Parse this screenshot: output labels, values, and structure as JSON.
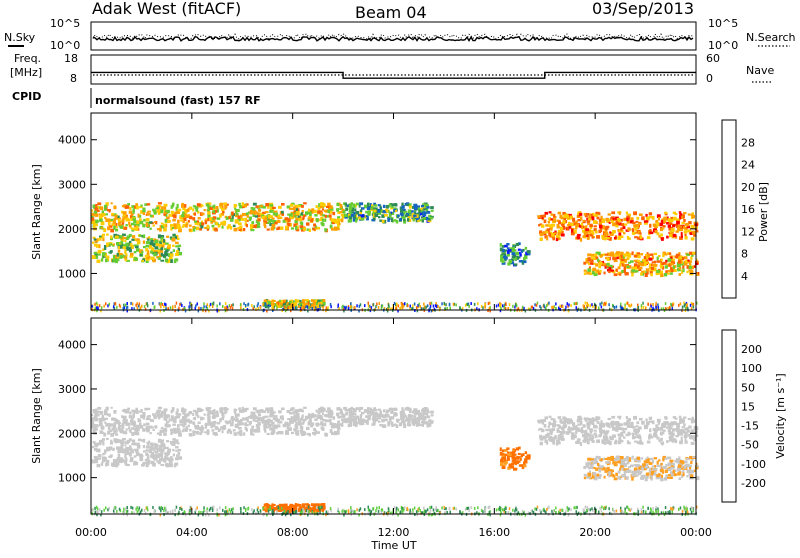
{
  "header": {
    "title": "Adak West (fitACF)",
    "beam": "Beam 04",
    "date": "03/Sep/2013"
  },
  "sky_panel": {
    "left_label": "N.Sky",
    "right_label": "N.Search",
    "ticks": [
      "10^5",
      "10^0"
    ]
  },
  "freq_panel": {
    "left_label_1": "Freq.",
    "left_label_2": "[MHz]",
    "right_label": "Nave",
    "left_ticks": [
      "18",
      "8"
    ],
    "right_ticks": [
      "60",
      "0"
    ]
  },
  "cpid": {
    "label": "CPID",
    "text": "normalsound (fast) 157 RF"
  },
  "power_panel": {
    "ylabel": "Slant Range [km]",
    "yticks": [
      "4000",
      "3000",
      "2000",
      "1000"
    ],
    "colorbar_label": "Power [dB]",
    "colorbar_ticks": [
      "28",
      "24",
      "20",
      "16",
      "12",
      "8",
      "4"
    ],
    "colors": [
      "#ff0000",
      "#ff6000",
      "#ff9f00",
      "#ffcc00",
      "#66cc33",
      "#2e8b57",
      "#1565c0",
      "#0a14ff"
    ]
  },
  "velocity_panel": {
    "ylabel": "Slant Range [km]",
    "yticks": [
      "4000",
      "3000",
      "2000",
      "1000"
    ],
    "colorbar_label": "Velocity [m s⁻¹]",
    "colorbar_ticks": [
      "200",
      "100",
      "50",
      "15",
      "-15",
      "-50",
      "-100",
      "-200"
    ],
    "colors": [
      "#1a1aa8",
      "#1f6fd0",
      "#2e8b57",
      "#5fd040",
      "#c8c8c8",
      "#ffa020",
      "#ff7000",
      "#ff3000",
      "#ff0000"
    ]
  },
  "xaxis": {
    "label": "Time UT",
    "ticks": [
      "00:00",
      "04:00",
      "08:00",
      "12:00",
      "16:00",
      "20:00",
      "00:00"
    ]
  },
  "chart_data": {
    "type": "heatmap",
    "title": "Adak West (fitACF)",
    "subtitle": "Beam 04",
    "xlabel": "Time UT",
    "ylabel": "Slant Range [km]",
    "x_range_hours": [
      0,
      24
    ],
    "y_range_km": [
      180,
      4600
    ],
    "freq_mhz_series": [
      {
        "t": [
          0,
          10
        ],
        "value": 12
      },
      {
        "t": [
          10,
          18
        ],
        "value": 10
      },
      {
        "t": [
          18,
          24
        ],
        "value": 12
      }
    ],
    "power_db_range": [
      0,
      30
    ],
    "velocity_range": [
      -250,
      250
    ],
    "scatter_bands": [
      {
        "t": [
          0,
          10
        ],
        "range_km": [
          2000,
          2600
        ],
        "power_db": 18,
        "velocity": 0
      },
      {
        "t": [
          10,
          13.5
        ],
        "range_km": [
          2200,
          2600
        ],
        "power_db": 10,
        "velocity": 0
      },
      {
        "t": [
          17.7,
          24
        ],
        "range_km": [
          1800,
          2400
        ],
        "power_db": 22,
        "velocity": 0
      },
      {
        "t": [
          0,
          3.5
        ],
        "range_km": [
          1300,
          1900
        ],
        "power_db": 15,
        "velocity": 0
      },
      {
        "t": [
          19.5,
          24
        ],
        "range_km": [
          1000,
          1500
        ],
        "power_db": 20,
        "velocity": -10
      },
      {
        "t": [
          16.2,
          17.3
        ],
        "range_km": [
          1200,
          1700
        ],
        "power_db": 8,
        "velocity": -60
      },
      {
        "t": [
          6.8,
          9.2
        ],
        "range_km": [
          280,
          430
        ],
        "power_db": 16,
        "velocity": -80
      }
    ]
  }
}
